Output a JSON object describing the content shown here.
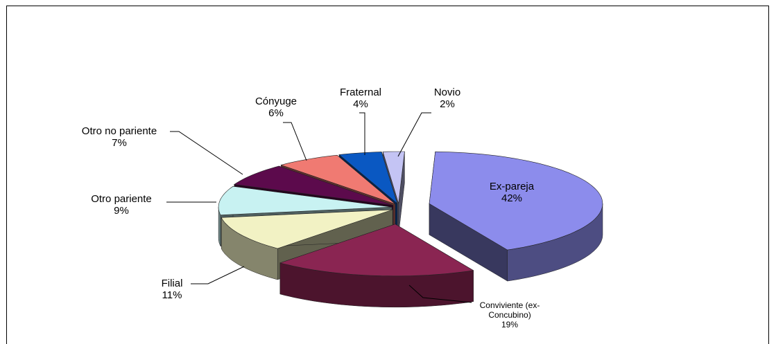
{
  "chart_data": {
    "type": "pie",
    "categories": [
      "Ex-pareja",
      "Conviviente (ex-Concubino)",
      "Filial",
      "Otro pariente",
      "Otro no pariente",
      "Cónyuge",
      "Fraternal",
      "Novio"
    ],
    "values": [
      42,
      19,
      11,
      9,
      7,
      6,
      4,
      2
    ],
    "value_labels": [
      "42%",
      "19%",
      "11%",
      "9%",
      "7%",
      "6%",
      "4%",
      "2%"
    ],
    "colors": [
      "#8c8cec",
      "#8a2552",
      "#f2f2c4",
      "#c8f2f2",
      "#5c0a4c",
      "#f07a72",
      "#0a58c2",
      "#c4c4f4"
    ]
  }
}
